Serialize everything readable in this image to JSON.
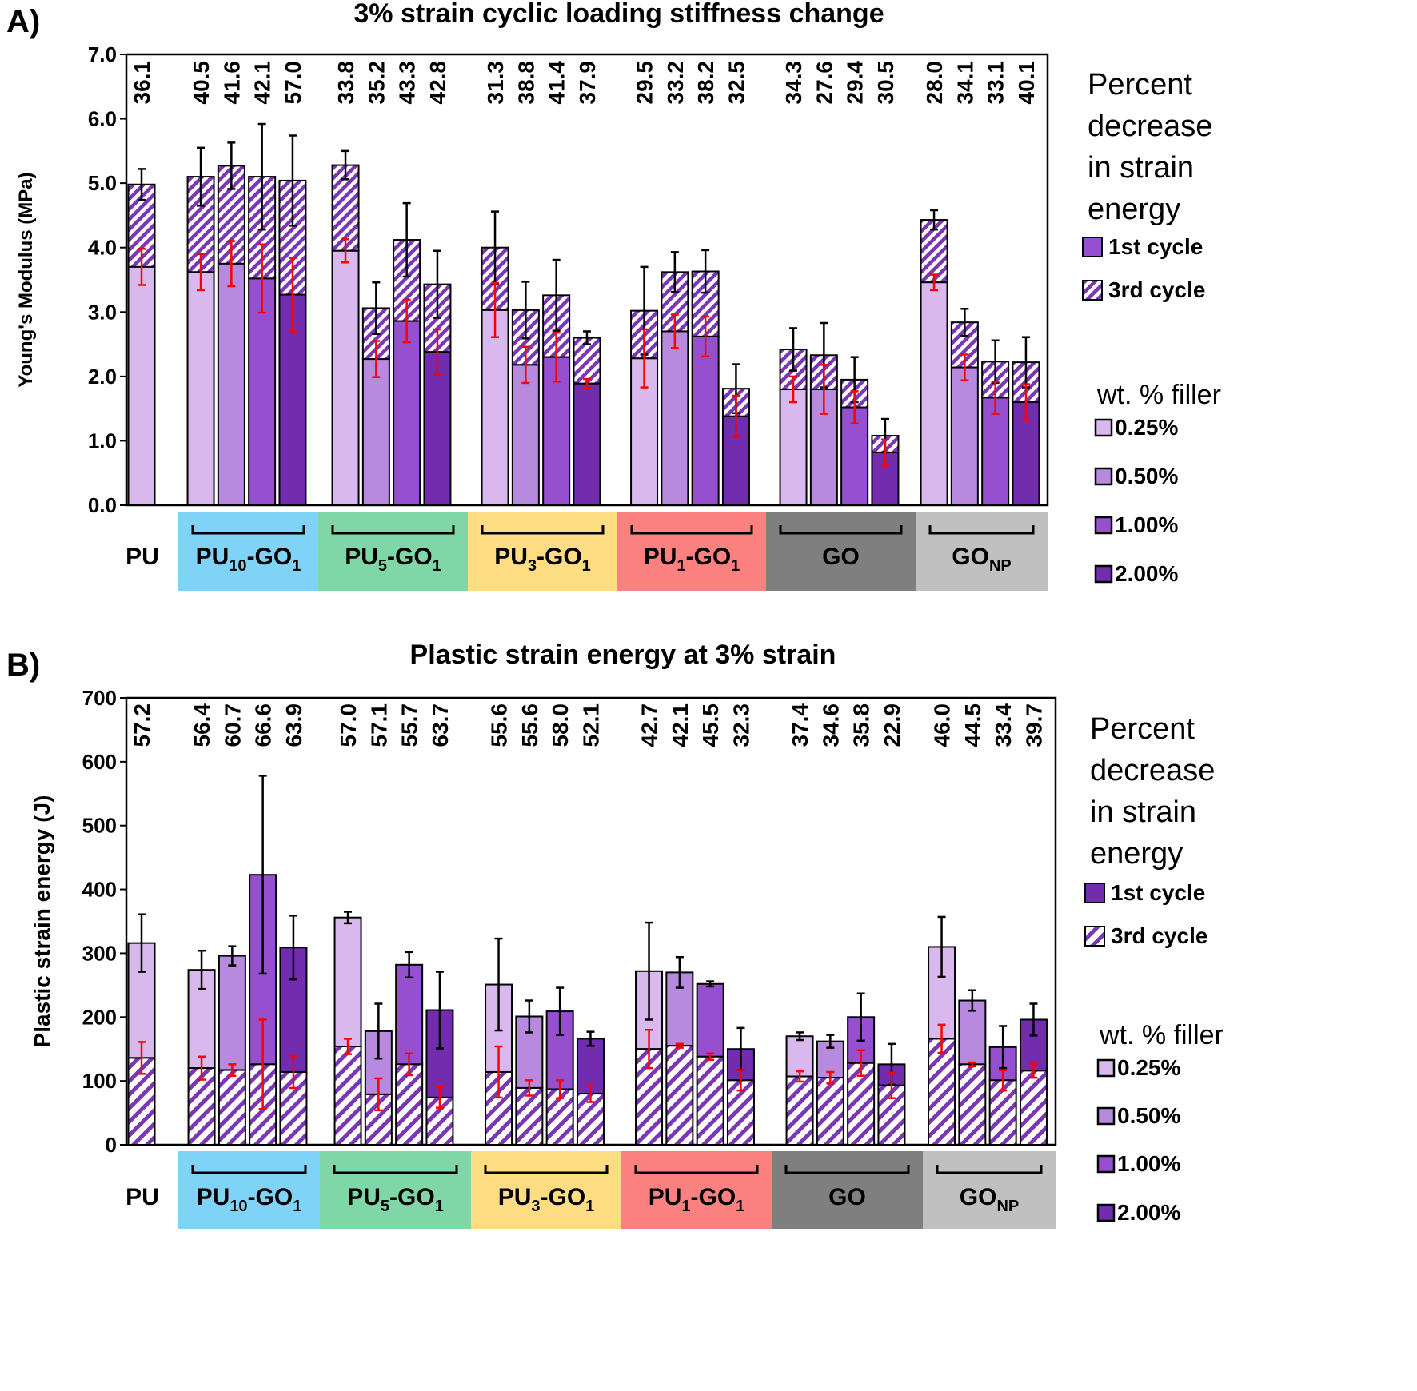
{
  "chart_data": [
    {
      "panel_label": "A)",
      "type": "bar",
      "title": "3% strain cyclic loading stiffness change",
      "ylabel": "Young's Modulus (MPa)",
      "ylim": [
        0,
        7
      ],
      "yticks": [
        "0.0",
        "1.0",
        "2.0",
        "3.0",
        "4.0",
        "5.0",
        "6.0",
        "7.0"
      ],
      "value_label_title": "Percent decrease in strain energy",
      "groups": [
        {
          "name": "PU",
          "sub": "",
          "color": "#ffffff",
          "bars": [
            {
              "level": "0.25%",
              "first": 4.98,
              "first_err": 0.24,
              "third": 3.7,
              "third_err": 0.28,
              "pct": "36.1"
            }
          ]
        },
        {
          "name": "PU10-GO1",
          "sub": "10|1",
          "color": "#7ed3f7",
          "bars": [
            {
              "level": "0.25%",
              "first": 5.1,
              "first_err": 0.45,
              "third": 3.62,
              "third_err": 0.28,
              "pct": "40.5"
            },
            {
              "level": "0.50%",
              "first": 5.27,
              "first_err": 0.36,
              "third": 3.75,
              "third_err": 0.35,
              "pct": "41.6"
            },
            {
              "level": "1.00%",
              "first": 5.1,
              "first_err": 0.82,
              "third": 3.52,
              "third_err": 0.53,
              "pct": "42.1"
            },
            {
              "level": "2.00%",
              "first": 5.04,
              "first_err": 0.7,
              "third": 3.27,
              "third_err": 0.57,
              "pct": "57.0"
            }
          ]
        },
        {
          "name": "PU5-GO1",
          "sub": "5|1",
          "color": "#7fd7a7",
          "bars": [
            {
              "level": "0.25%",
              "first": 5.28,
              "first_err": 0.22,
              "third": 3.95,
              "third_err": 0.18,
              "pct": "33.8"
            },
            {
              "level": "0.50%",
              "first": 3.06,
              "first_err": 0.4,
              "third": 2.27,
              "third_err": 0.28,
              "pct": "35.2"
            },
            {
              "level": "1.00%",
              "first": 4.12,
              "first_err": 0.57,
              "third": 2.86,
              "third_err": 0.33,
              "pct": "43.3"
            },
            {
              "level": "2.00%",
              "first": 3.43,
              "first_err": 0.52,
              "third": 2.38,
              "third_err": 0.35,
              "pct": "42.8"
            }
          ]
        },
        {
          "name": "PU3-GO1",
          "sub": "3|1",
          "color": "#fedc82",
          "bars": [
            {
              "level": "0.25%",
              "first": 4.0,
              "first_err": 0.56,
              "third": 3.03,
              "third_err": 0.42,
              "pct": "31.3"
            },
            {
              "level": "0.50%",
              "first": 3.03,
              "first_err": 0.44,
              "third": 2.18,
              "third_err": 0.28,
              "pct": "38.8"
            },
            {
              "level": "1.00%",
              "first": 3.26,
              "first_err": 0.55,
              "third": 2.3,
              "third_err": 0.38,
              "pct": "41.4"
            },
            {
              "level": "2.00%",
              "first": 2.6,
              "first_err": 0.1,
              "third": 1.89,
              "third_err": 0.07,
              "pct": "37.9"
            }
          ]
        },
        {
          "name": "PU1-GO1",
          "sub": "1|1",
          "color": "#fb8181",
          "bars": [
            {
              "level": "0.25%",
              "first": 3.02,
              "first_err": 0.68,
              "third": 2.28,
              "third_err": 0.45,
              "pct": "29.5"
            },
            {
              "level": "0.50%",
              "first": 3.62,
              "first_err": 0.31,
              "third": 2.7,
              "third_err": 0.26,
              "pct": "33.2"
            },
            {
              "level": "1.00%",
              "first": 3.63,
              "first_err": 0.33,
              "third": 2.62,
              "third_err": 0.31,
              "pct": "38.2"
            },
            {
              "level": "2.00%",
              "first": 1.81,
              "first_err": 0.38,
              "third": 1.38,
              "third_err": 0.32,
              "pct": "32.5"
            }
          ]
        },
        {
          "name": "GO",
          "sub": "",
          "color": "#7f7f7f",
          "bars": [
            {
              "level": "0.25%",
              "first": 2.42,
              "first_err": 0.33,
              "third": 1.8,
              "third_err": 0.2,
              "pct": "34.3"
            },
            {
              "level": "0.50%",
              "first": 2.33,
              "first_err": 0.5,
              "third": 1.8,
              "third_err": 0.38,
              "pct": "27.6"
            },
            {
              "level": "1.00%",
              "first": 1.95,
              "first_err": 0.35,
              "third": 1.52,
              "third_err": 0.25,
              "pct": "29.4"
            },
            {
              "level": "2.00%",
              "first": 1.08,
              "first_err": 0.26,
              "third": 0.82,
              "third_err": 0.2,
              "pct": "30.5"
            }
          ]
        },
        {
          "name": "GONP",
          "sub": "NP",
          "color": "#c0c0c0",
          "bars": [
            {
              "level": "0.25%",
              "first": 4.43,
              "first_err": 0.15,
              "third": 3.46,
              "third_err": 0.12,
              "pct": "28.0"
            },
            {
              "level": "0.50%",
              "first": 2.84,
              "first_err": 0.21,
              "third": 2.14,
              "third_err": 0.2,
              "pct": "34.1"
            },
            {
              "level": "1.00%",
              "first": 2.23,
              "first_err": 0.33,
              "third": 1.67,
              "third_err": 0.25,
              "pct": "33.1"
            },
            {
              "level": "2.00%",
              "first": 2.22,
              "first_err": 0.39,
              "third": 1.6,
              "third_err": 0.28,
              "pct": "40.1"
            }
          ]
        }
      ]
    },
    {
      "panel_label": "B)",
      "type": "bar",
      "title": "Plastic strain energy at 3% strain",
      "ylabel": "Plastic strain energy (J)",
      "ylim": [
        0,
        700
      ],
      "yticks": [
        "0",
        "100",
        "200",
        "300",
        "400",
        "500",
        "600",
        "700"
      ],
      "value_label_title": "Percent decrease in strain energy",
      "groups": [
        {
          "name": "PU",
          "sub": "",
          "color": "#ffffff",
          "bars": [
            {
              "level": "0.25%",
              "first": 316,
              "first_err": 45,
              "third": 136,
              "third_err": 25,
              "pct": "57.2"
            }
          ]
        },
        {
          "name": "PU10-GO1",
          "sub": "10|1",
          "color": "#7ed3f7",
          "bars": [
            {
              "level": "0.25%",
              "first": 274,
              "first_err": 30,
              "third": 120,
              "third_err": 18,
              "pct": "56.4"
            },
            {
              "level": "0.50%",
              "first": 296,
              "first_err": 15,
              "third": 117,
              "third_err": 9,
              "pct": "60.7"
            },
            {
              "level": "1.00%",
              "first": 423,
              "first_err": 155,
              "third": 126,
              "third_err": 70,
              "pct": "66.6"
            },
            {
              "level": "2.00%",
              "first": 309,
              "first_err": 50,
              "third": 114,
              "third_err": 25,
              "pct": "63.9"
            }
          ]
        },
        {
          "name": "PU5-GO1",
          "sub": "5|1",
          "color": "#7fd7a7",
          "bars": [
            {
              "level": "0.25%",
              "first": 356,
              "first_err": 9,
              "third": 154,
              "third_err": 12,
              "pct": "57.0"
            },
            {
              "level": "0.50%",
              "first": 178,
              "first_err": 43,
              "third": 79,
              "third_err": 25,
              "pct": "57.1"
            },
            {
              "level": "1.00%",
              "first": 282,
              "first_err": 20,
              "third": 126,
              "third_err": 17,
              "pct": "55.7"
            },
            {
              "level": "2.00%",
              "first": 211,
              "first_err": 60,
              "third": 74,
              "third_err": 16,
              "pct": "63.7"
            }
          ]
        },
        {
          "name": "PU3-GO1",
          "sub": "3|1",
          "color": "#fedc82",
          "bars": [
            {
              "level": "0.25%",
              "first": 251,
              "first_err": 72,
              "third": 114,
              "third_err": 40,
              "pct": "55.6"
            },
            {
              "level": "0.50%",
              "first": 201,
              "first_err": 25,
              "third": 89,
              "third_err": 12,
              "pct": "55.6"
            },
            {
              "level": "1.00%",
              "first": 209,
              "first_err": 37,
              "third": 87,
              "third_err": 14,
              "pct": "58.0"
            },
            {
              "level": "2.00%",
              "first": 166,
              "first_err": 11,
              "third": 80,
              "third_err": 13,
              "pct": "52.1"
            }
          ]
        },
        {
          "name": "PU1-GO1",
          "sub": "1|1",
          "color": "#fb8181",
          "bars": [
            {
              "level": "0.25%",
              "first": 272,
              "first_err": 76,
              "third": 150,
              "third_err": 30,
              "pct": "42.7"
            },
            {
              "level": "0.50%",
              "first": 270,
              "first_err": 24,
              "third": 155,
              "third_err": 3,
              "pct": "42.1"
            },
            {
              "level": "1.00%",
              "first": 252,
              "first_err": 4,
              "third": 138,
              "third_err": 5,
              "pct": "45.5"
            },
            {
              "level": "2.00%",
              "first": 150,
              "first_err": 33,
              "third": 101,
              "third_err": 16,
              "pct": "32.3"
            }
          ]
        },
        {
          "name": "GO",
          "sub": "",
          "color": "#7f7f7f",
          "bars": [
            {
              "level": "0.25%",
              "first": 170,
              "first_err": 6,
              "third": 107,
              "third_err": 8,
              "pct": "37.4"
            },
            {
              "level": "0.50%",
              "first": 162,
              "first_err": 10,
              "third": 105,
              "third_err": 9,
              "pct": "34.6"
            },
            {
              "level": "1.00%",
              "first": 200,
              "first_err": 37,
              "third": 128,
              "third_err": 20,
              "pct": "35.8"
            },
            {
              "level": "2.00%",
              "first": 126,
              "first_err": 32,
              "third": 93,
              "third_err": 20,
              "pct": "22.9"
            }
          ]
        },
        {
          "name": "GONP",
          "sub": "NP",
          "color": "#c0c0c0",
          "bars": [
            {
              "level": "0.25%",
              "first": 310,
              "first_err": 47,
              "third": 166,
              "third_err": 22,
              "pct": "46.0"
            },
            {
              "level": "0.50%",
              "first": 226,
              "first_err": 16,
              "third": 126,
              "third_err": 3,
              "pct": "44.5"
            },
            {
              "level": "1.00%",
              "first": 153,
              "first_err": 33,
              "third": 101,
              "third_err": 16,
              "pct": "33.4"
            },
            {
              "level": "2.00%",
              "first": 196,
              "first_err": 25,
              "third": 116,
              "third_err": 11,
              "pct": "39.7"
            }
          ]
        }
      ]
    }
  ],
  "legend": {
    "title_lines": [
      "Percent",
      "decrease",
      "in strain",
      "energy"
    ],
    "cycles": [
      "1st cycle",
      "3rd cycle"
    ],
    "filler_title": "wt. % filler",
    "filler_levels": [
      "0.25%",
      "0.50%",
      "1.00%",
      "2.00%"
    ]
  },
  "colors": {
    "level_fills": [
      "#d9b8ee",
      "#b78ae0",
      "#9650cf",
      "#722cae"
    ],
    "bar_stroke": "#000000",
    "err_first": "#000000",
    "err_third": "#ff0000"
  }
}
